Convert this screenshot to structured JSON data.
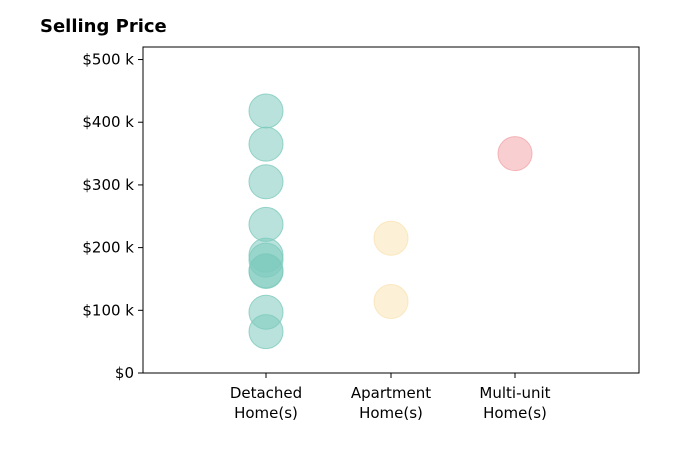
{
  "chart_data": {
    "type": "scatter",
    "title": "Selling Price",
    "xlabel": "",
    "ylabel": "",
    "categories": [
      [
        "Detached",
        "Home(s)"
      ],
      [
        "Apartment",
        "Home(s)"
      ],
      [
        "Multi-unit",
        "Home(s)"
      ]
    ],
    "ylim": [
      0,
      520
    ],
    "yticks": [
      0,
      100,
      200,
      300,
      400,
      500
    ],
    "ytick_labels": [
      "$0",
      "$100 k",
      "$200 k",
      "$300 k",
      "$400 k",
      "$500 k"
    ],
    "grid": false,
    "series": [
      {
        "category": 0,
        "color": "#7ecbbd",
        "values": [
          418,
          365,
          305,
          237,
          188,
          180,
          163,
          162,
          97,
          66
        ]
      },
      {
        "category": 1,
        "color": "#f9e4b4",
        "values": [
          215,
          114
        ]
      },
      {
        "category": 2,
        "color": "#f3a5a9",
        "values": [
          350
        ]
      }
    ]
  }
}
